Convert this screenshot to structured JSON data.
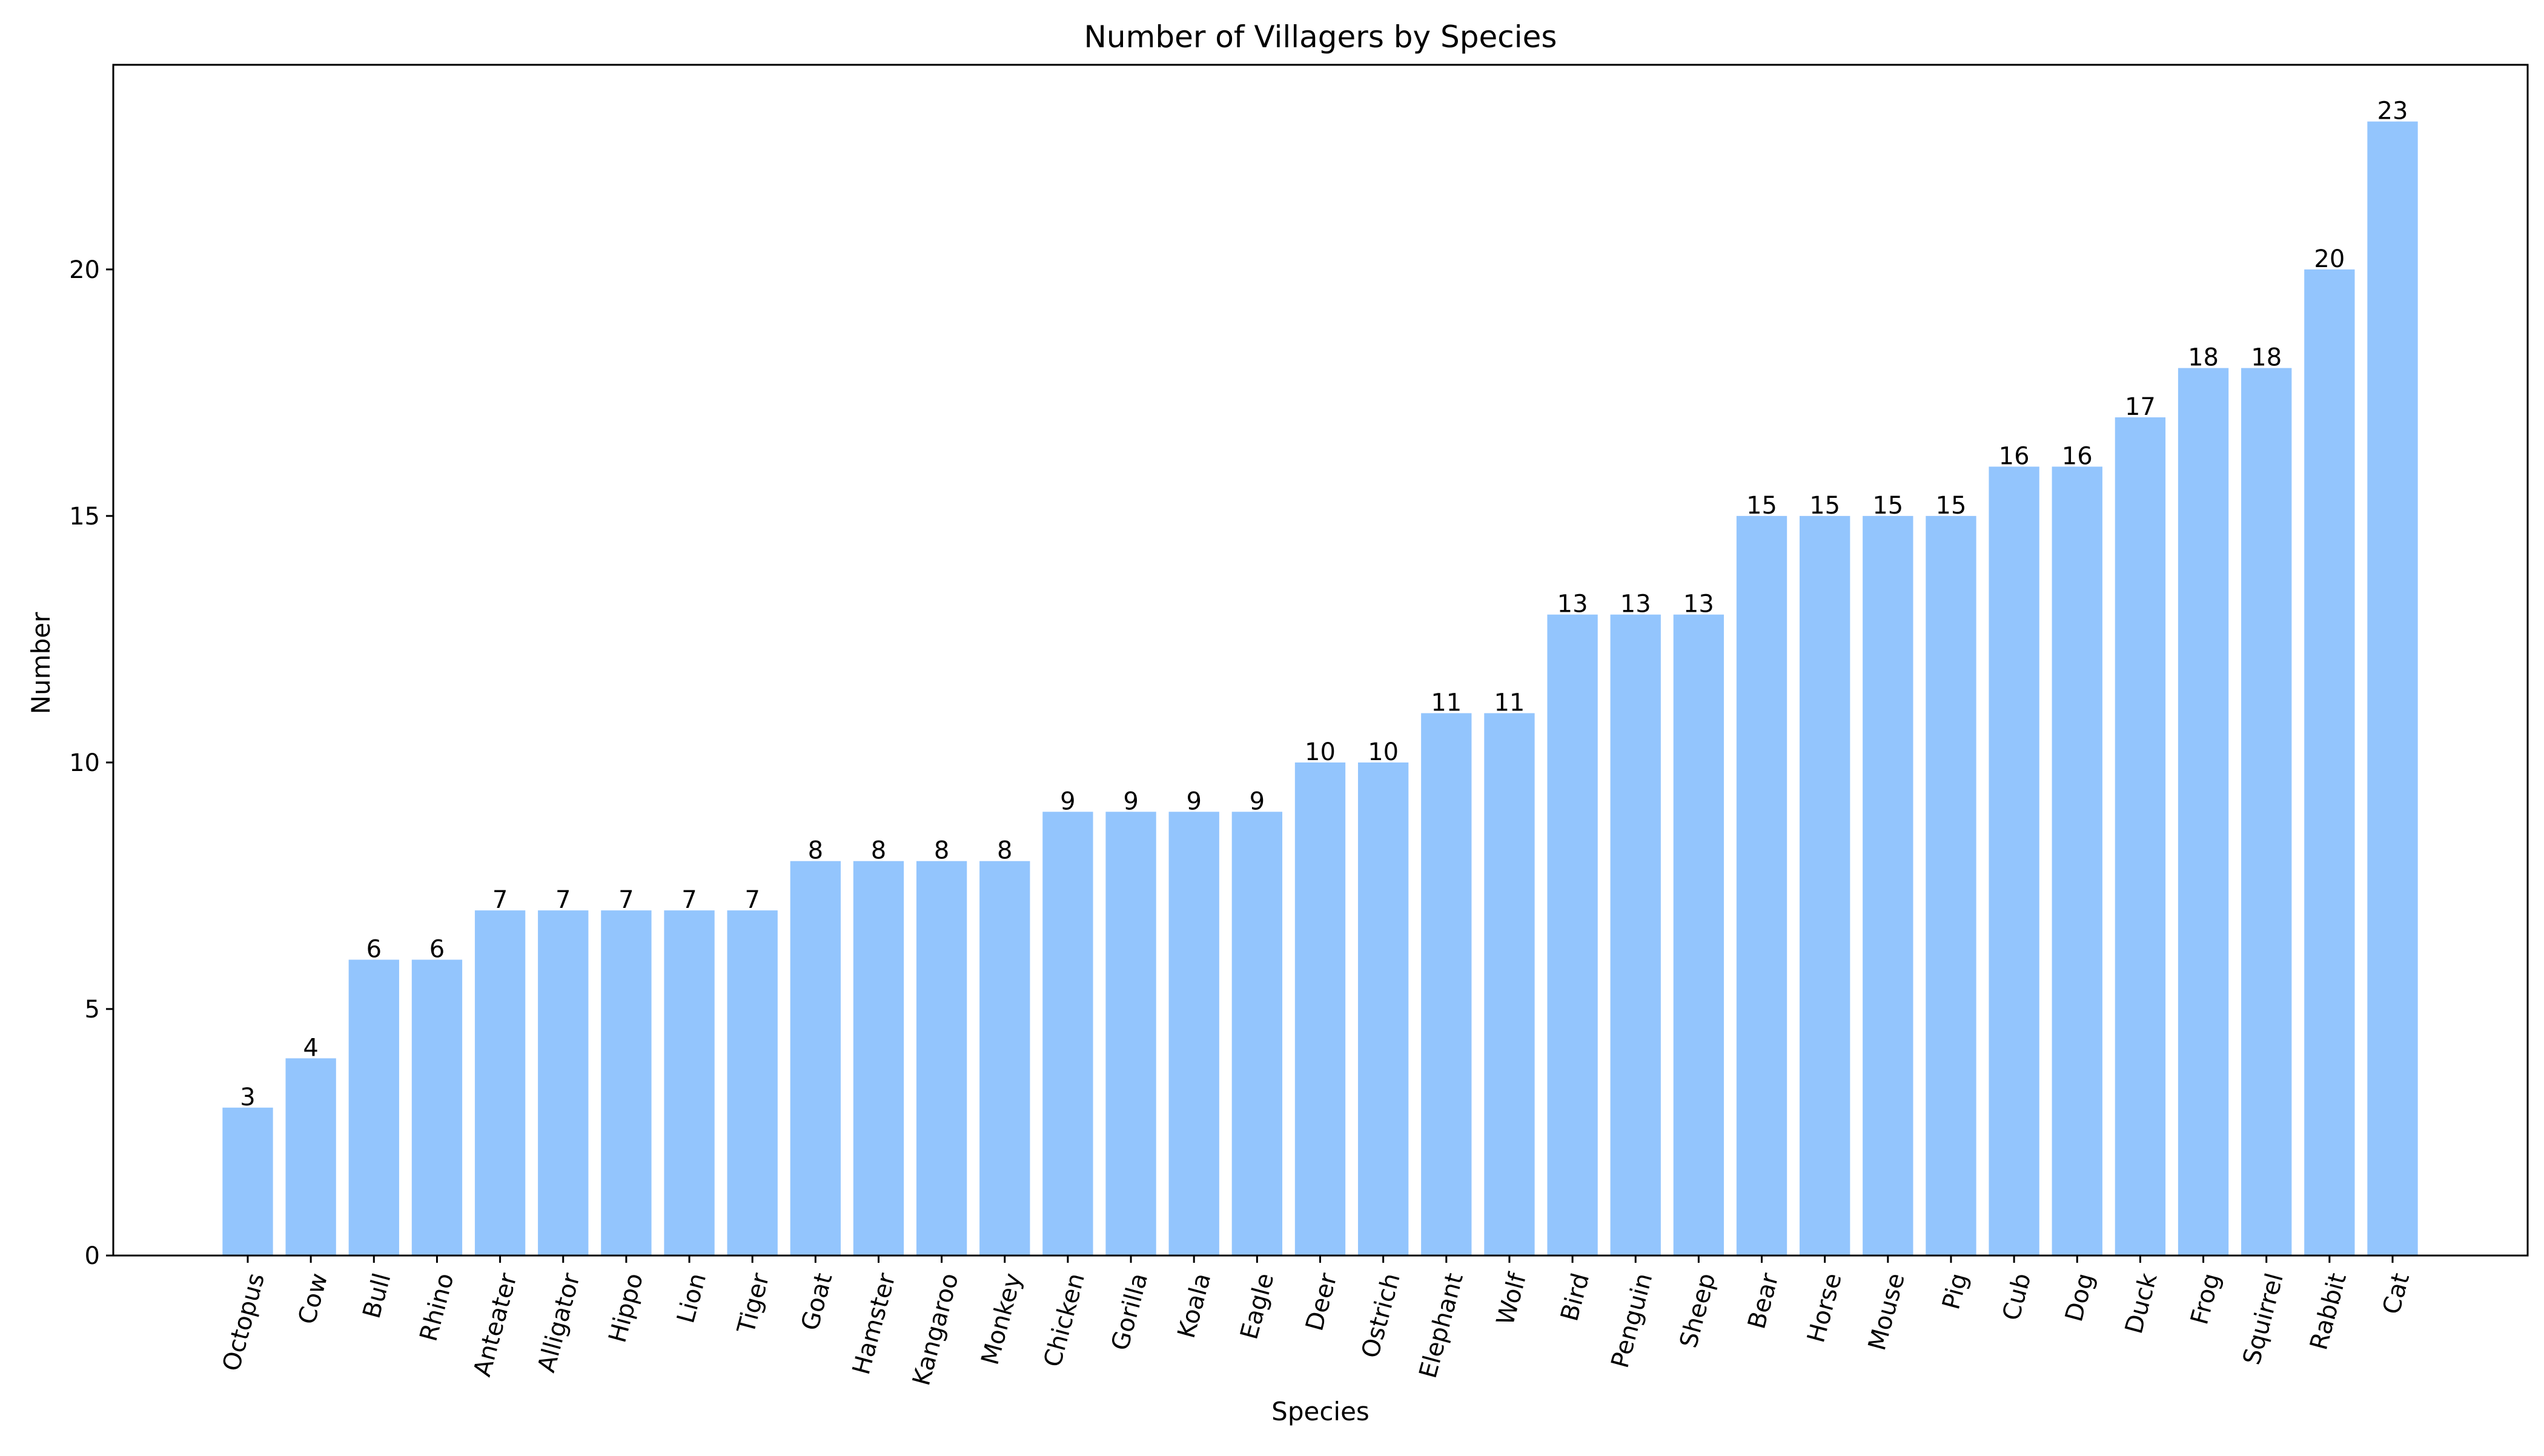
{
  "chart_data": {
    "type": "bar",
    "title": "Number of Villagers by Species",
    "xlabel": "Species",
    "ylabel": "Number",
    "ylim": [
      0,
      24.15
    ],
    "yticks": [
      0,
      5,
      10,
      15,
      20
    ],
    "grid": false,
    "bar_color": "#93c5fd",
    "categories": [
      "Octopus",
      "Cow",
      "Bull",
      "Rhino",
      "Anteater",
      "Alligator",
      "Hippo",
      "Lion",
      "Tiger",
      "Goat",
      "Hamster",
      "Kangaroo",
      "Monkey",
      "Chicken",
      "Gorilla",
      "Koala",
      "Eagle",
      "Deer",
      "Ostrich",
      "Elephant",
      "Wolf",
      "Bird",
      "Penguin",
      "Sheep",
      "Bear",
      "Horse",
      "Mouse",
      "Pig",
      "Cub",
      "Dog",
      "Duck",
      "Frog",
      "Squirrel",
      "Rabbit",
      "Cat"
    ],
    "values": [
      3,
      4,
      6,
      6,
      7,
      7,
      7,
      7,
      7,
      8,
      8,
      8,
      8,
      9,
      9,
      9,
      9,
      10,
      10,
      11,
      11,
      13,
      13,
      13,
      15,
      15,
      15,
      15,
      16,
      16,
      17,
      18,
      18,
      20,
      23
    ]
  }
}
